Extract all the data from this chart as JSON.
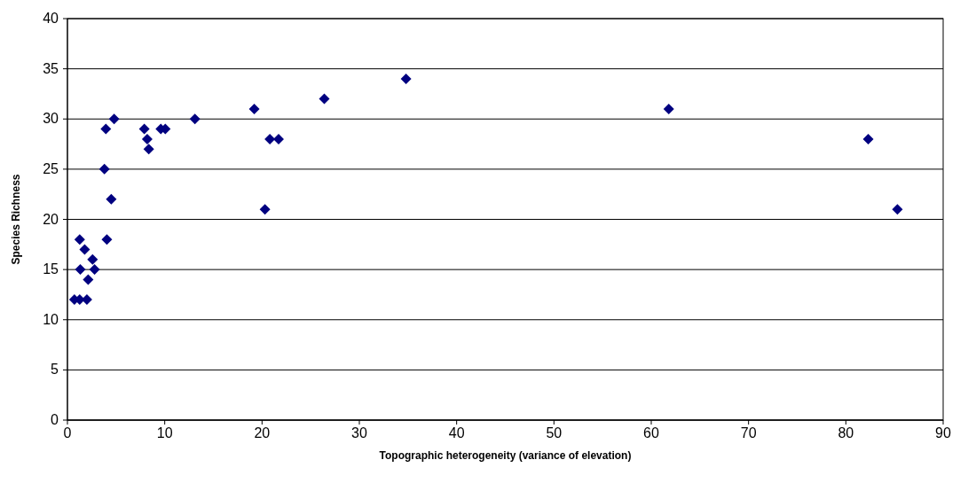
{
  "chart_data": {
    "type": "scatter",
    "xlabel": "Topographic heterogeneity (variance of elevation)",
    "ylabel": "Species Richness",
    "xlim": [
      0,
      90
    ],
    "xticks": [
      0,
      10,
      20,
      30,
      40,
      50,
      60,
      70,
      80,
      90
    ],
    "ylim": [
      0,
      40
    ],
    "yticks": [
      0,
      5,
      10,
      15,
      20,
      25,
      30,
      35,
      40
    ],
    "grid": "y",
    "marker": "diamond",
    "series": [
      {
        "color": "#000080",
        "x": [
          4.8,
          3.95,
          3.8,
          4.5,
          4.05,
          1.26,
          1.77,
          2.58,
          1.32,
          2.79,
          2.13,
          0.72,
          1.26,
          2.0,
          7.9,
          8.2,
          8.36,
          9.6,
          10.06,
          13.1,
          19.2,
          20.8,
          21.7,
          20.3,
          26.4,
          34.8,
          61.8,
          82.3,
          85.3
        ],
        "values": [
          30,
          29,
          25,
          22,
          18,
          18,
          17,
          16,
          15,
          15,
          14,
          12,
          12,
          12,
          29,
          28,
          27,
          29,
          29,
          30,
          31,
          28,
          28,
          21,
          32,
          34,
          31,
          28,
          21
        ]
      }
    ]
  }
}
